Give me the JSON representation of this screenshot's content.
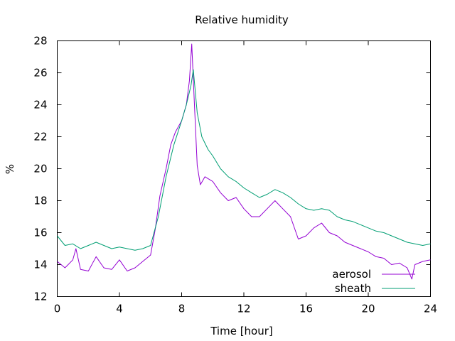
{
  "chart_data": {
    "type": "line",
    "title": "Relative humidity",
    "xlabel": "Time [hour]",
    "ylabel": "%",
    "xlim": [
      0,
      24
    ],
    "ylim": [
      12,
      28
    ],
    "xticks": [
      0,
      4,
      8,
      12,
      16,
      20,
      24
    ],
    "yticks": [
      12,
      14,
      16,
      18,
      20,
      22,
      24,
      26,
      28
    ],
    "grid": false,
    "legend_position": "bottom-right",
    "series": [
      {
        "name": "aerosol",
        "color": "#9400d3",
        "x": [
          0,
          0.5,
          1,
          1.2,
          1.5,
          2,
          2.5,
          3,
          3.5,
          4,
          4.5,
          5,
          5.5,
          6,
          6.3,
          6.6,
          7,
          7.3,
          7.6,
          8,
          8.3,
          8.5,
          8.65,
          8.8,
          9,
          9.2,
          9.5,
          10,
          10.5,
          11,
          11.5,
          12,
          12.5,
          13,
          13.5,
          14,
          14.5,
          15,
          15.5,
          16,
          16.5,
          17,
          17.5,
          18,
          18.5,
          19,
          19.5,
          20,
          20.5,
          21,
          21.5,
          22,
          22.5,
          22.8,
          23,
          23.5,
          24
        ],
        "y": [
          14.2,
          13.8,
          14.3,
          15.0,
          13.7,
          13.6,
          14.5,
          13.8,
          13.7,
          14.3,
          13.6,
          13.8,
          14.2,
          14.6,
          16.2,
          18.3,
          20.0,
          21.5,
          22.3,
          23.0,
          24.0,
          25.5,
          27.8,
          24.5,
          20.2,
          19.0,
          19.5,
          19.2,
          18.5,
          18.0,
          18.2,
          17.5,
          17.0,
          17.0,
          17.5,
          18.0,
          17.5,
          17.0,
          15.6,
          15.8,
          16.3,
          16.6,
          16.0,
          15.8,
          15.4,
          15.2,
          15.0,
          14.8,
          14.5,
          14.4,
          14.0,
          14.1,
          13.8,
          13.1,
          14.0,
          14.2,
          14.3
        ]
      },
      {
        "name": "sheath",
        "color": "#009e73",
        "x": [
          0,
          0.5,
          1,
          1.5,
          2,
          2.5,
          3,
          3.5,
          4,
          4.5,
          5,
          5.5,
          6,
          6.5,
          7,
          7.5,
          8,
          8.3,
          8.6,
          8.75,
          9,
          9.3,
          9.7,
          10,
          10.5,
          11,
          11.5,
          12,
          12.5,
          13,
          13.5,
          14,
          14.5,
          15,
          15.5,
          16,
          16.5,
          17,
          17.5,
          18,
          18.5,
          19,
          19.5,
          20,
          20.5,
          21,
          21.5,
          22,
          22.5,
          23,
          23.5,
          24
        ],
        "y": [
          15.8,
          15.2,
          15.3,
          15.0,
          15.2,
          15.4,
          15.2,
          15.0,
          15.1,
          15.0,
          14.9,
          15.0,
          15.2,
          17.0,
          19.5,
          21.5,
          23.0,
          24.0,
          25.2,
          26.2,
          23.5,
          22.0,
          21.2,
          20.8,
          20.0,
          19.5,
          19.2,
          18.8,
          18.5,
          18.2,
          18.4,
          18.7,
          18.5,
          18.2,
          17.8,
          17.5,
          17.4,
          17.5,
          17.4,
          17.0,
          16.8,
          16.7,
          16.5,
          16.3,
          16.1,
          16.0,
          15.8,
          15.6,
          15.4,
          15.3,
          15.2,
          15.3
        ]
      }
    ]
  }
}
